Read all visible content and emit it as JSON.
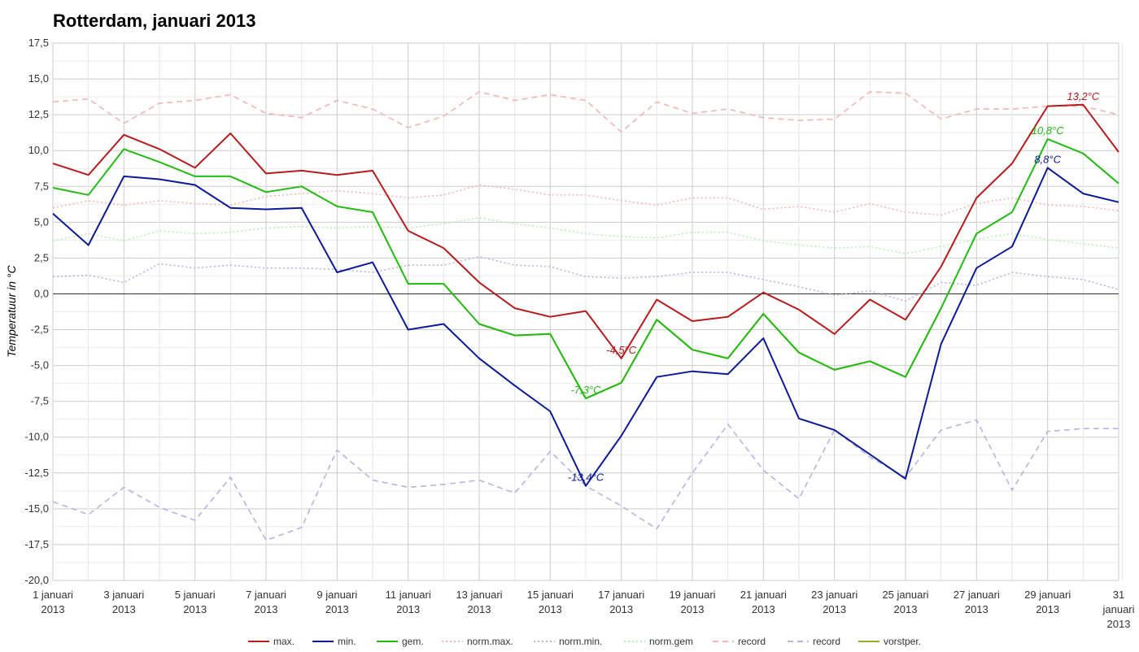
{
  "chart_data": {
    "type": "line",
    "title": "Rotterdam, januari 2013",
    "ylabel": "Temperatuur in °C",
    "ylim": [
      -20,
      17.5
    ],
    "ytick_step": 2.5,
    "ytick_labels": [
      "17,5",
      "15,0",
      "12,5",
      "10,0",
      "7,5",
      "5,0",
      "2,5",
      "0,0",
      "-2,5",
      "-5,0",
      "-7,5",
      "-10,0",
      "-12,5",
      "-15,0",
      "-17,5",
      "-20,0"
    ],
    "x": [
      1,
      2,
      3,
      4,
      5,
      6,
      7,
      8,
      9,
      10,
      11,
      12,
      13,
      14,
      15,
      16,
      17,
      18,
      19,
      20,
      21,
      22,
      23,
      24,
      25,
      26,
      27,
      28,
      29,
      30,
      31
    ],
    "xlim": [
      1,
      31
    ],
    "xtick_labels": [
      {
        "day": 1,
        "line1": "1 januari",
        "line2": "2013"
      },
      {
        "day": 3,
        "line1": "3 januari",
        "line2": "2013"
      },
      {
        "day": 5,
        "line1": "5 januari",
        "line2": "2013"
      },
      {
        "day": 7,
        "line1": "7 januari",
        "line2": "2013"
      },
      {
        "day": 9,
        "line1": "9 januari",
        "line2": "2013"
      },
      {
        "day": 11,
        "line1": "11 januari",
        "line2": "2013"
      },
      {
        "day": 13,
        "line1": "13 januari",
        "line2": "2013"
      },
      {
        "day": 15,
        "line1": "15 januari",
        "line2": "2013"
      },
      {
        "day": 17,
        "line1": "17 januari",
        "line2": "2013"
      },
      {
        "day": 19,
        "line1": "19 januari",
        "line2": "2013"
      },
      {
        "day": 21,
        "line1": "21 januari",
        "line2": "2013"
      },
      {
        "day": 23,
        "line1": "23 januari",
        "line2": "2013"
      },
      {
        "day": 25,
        "line1": "25 januari",
        "line2": "2013"
      },
      {
        "day": 27,
        "line1": "27 januari",
        "line2": "2013"
      },
      {
        "day": 29,
        "line1": "29 januari",
        "line2": "2013"
      },
      {
        "day": 31,
        "line1": "31",
        "line2": "januari",
        "line3": "2013"
      }
    ],
    "grid": true,
    "legend_position": "bottom",
    "series": [
      {
        "name": "norm.max.",
        "color": "#f4b4b4",
        "style": "dotted",
        "values": [
          6.0,
          6.5,
          6.2,
          6.5,
          6.3,
          6.2,
          6.8,
          7.0,
          7.2,
          7.0,
          6.7,
          6.9,
          7.6,
          7.3,
          6.9,
          6.9,
          6.5,
          6.2,
          6.7,
          6.7,
          5.9,
          6.1,
          5.7,
          6.3,
          5.7,
          5.5,
          6.3,
          6.7,
          6.2,
          6.1,
          5.8
        ]
      },
      {
        "name": "norm.min.",
        "color": "#b4b4e6",
        "style": "dotted",
        "values": [
          1.2,
          1.3,
          0.8,
          2.1,
          1.8,
          2.0,
          1.8,
          1.8,
          1.7,
          1.5,
          2.0,
          2.0,
          2.6,
          2.0,
          1.9,
          1.2,
          1.1,
          1.2,
          1.5,
          1.5,
          1.0,
          0.5,
          -0.1,
          0.2,
          -0.5,
          0.8,
          0.6,
          1.5,
          1.2,
          1.0,
          0.3
        ]
      },
      {
        "name": "norm.gem",
        "color": "#b4f0b4",
        "style": "dotted",
        "values": [
          3.7,
          4.2,
          3.7,
          4.4,
          4.2,
          4.3,
          4.6,
          4.7,
          4.6,
          4.7,
          4.6,
          4.9,
          5.3,
          4.9,
          4.6,
          4.2,
          4.0,
          3.9,
          4.3,
          4.3,
          3.7,
          3.4,
          3.2,
          3.3,
          2.8,
          3.3,
          3.8,
          4.2,
          3.8,
          3.5,
          3.2
        ]
      },
      {
        "name": "record",
        "color": "#f4b4b4",
        "style": "dashed",
        "values": [
          13.4,
          13.6,
          11.9,
          13.3,
          13.5,
          13.9,
          12.6,
          12.3,
          13.5,
          12.9,
          11.6,
          12.4,
          14.1,
          13.5,
          13.9,
          13.5,
          11.3,
          13.4,
          12.6,
          12.9,
          12.3,
          12.1,
          12.2,
          14.1,
          14.0,
          12.2,
          12.9,
          12.9,
          13.1,
          13.1,
          12.5
        ]
      },
      {
        "name": "record",
        "color": "#b4b4e6",
        "style": "dashed",
        "values": [
          -14.5,
          -15.4,
          -13.5,
          -14.9,
          -15.8,
          -12.8,
          -17.2,
          -16.3,
          -10.9,
          -13.0,
          -13.5,
          -13.3,
          -13.0,
          -13.9,
          -11.0,
          -13.4,
          -14.8,
          -16.4,
          -12.5,
          -9.1,
          -12.3,
          -14.3,
          -9.5,
          -11.4,
          -12.8,
          -9.5,
          -8.8,
          -13.7,
          -9.6,
          -9.4,
          -9.4
        ]
      },
      {
        "name": "vorstper.",
        "color": "#9aaa22",
        "style": "solid",
        "values": [
          null,
          null,
          null,
          null,
          null,
          null,
          null,
          null,
          null,
          null,
          null,
          null,
          -2.1,
          -2.9,
          -2.8,
          -7.3,
          -6.2,
          -1.8,
          -3.9,
          -4.5,
          -1.4,
          -4.1,
          -5.3,
          -4.7,
          -5.8,
          -1.0,
          null,
          null,
          null,
          null,
          null
        ]
      },
      {
        "name": "min.",
        "color": "#0b1a99",
        "style": "solid",
        "values": [
          5.6,
          3.4,
          8.2,
          8.0,
          7.6,
          6.0,
          5.9,
          6.0,
          1.5,
          2.2,
          -2.5,
          -2.1,
          -4.5,
          -6.4,
          -8.2,
          -13.4,
          -9.9,
          -5.8,
          -5.4,
          -5.6,
          -3.1,
          -8.7,
          -9.5,
          -11.2,
          -12.9,
          -3.5,
          1.8,
          3.3,
          8.8,
          7.0,
          6.4
        ]
      },
      {
        "name": "gem.",
        "color": "#22bb11",
        "style": "solid",
        "values": [
          7.4,
          6.9,
          10.1,
          9.2,
          8.2,
          8.2,
          7.1,
          7.5,
          6.1,
          5.7,
          0.7,
          0.7,
          -2.1,
          -2.9,
          -2.8,
          -7.3,
          -6.2,
          -1.8,
          -3.9,
          -4.5,
          -1.4,
          -4.1,
          -5.3,
          -4.7,
          -5.8,
          -1.0,
          4.2,
          5.7,
          10.8,
          9.8,
          7.7
        ]
      },
      {
        "name": "max.",
        "color": "#b81b1b",
        "style": "solid",
        "values": [
          9.1,
          8.3,
          11.1,
          10.1,
          8.8,
          11.2,
          8.4,
          8.6,
          8.3,
          8.6,
          4.4,
          3.2,
          0.8,
          -1.0,
          -1.6,
          -1.2,
          -4.5,
          -0.4,
          -1.9,
          -1.6,
          0.1,
          -1.1,
          -2.8,
          -0.4,
          -1.8,
          1.9,
          6.7,
          9.1,
          13.1,
          13.2,
          9.9
        ]
      }
    ],
    "annotations": [
      {
        "text": "13,2°C",
        "day": 30,
        "value": 13.2,
        "color": "#b81b1b"
      },
      {
        "text": "10,8°C",
        "day": 29,
        "value": 10.8,
        "color": "#22bb11"
      },
      {
        "text": "8,8°C",
        "day": 29,
        "value": 8.8,
        "color": "#0b1a99"
      },
      {
        "text": "-4,5°C",
        "day": 17,
        "value": -4.5,
        "color": "#b81b1b"
      },
      {
        "text": "-7,3°C",
        "day": 16,
        "value": -7.3,
        "color": "#22bb11"
      },
      {
        "text": "-13,4°C",
        "day": 16,
        "value": -13.4,
        "color": "#0b1a99"
      }
    ],
    "legend": [
      {
        "label": "max.",
        "color": "#b81b1b",
        "style": "solid"
      },
      {
        "label": "min.",
        "color": "#0b1a99",
        "style": "solid"
      },
      {
        "label": "gem.",
        "color": "#22bb11",
        "style": "solid"
      },
      {
        "label": "norm.max.",
        "color": "#f4b4b4",
        "style": "dotted"
      },
      {
        "label": "norm.min.",
        "color": "#b4b4e6",
        "style": "dotted"
      },
      {
        "label": "norm.gem",
        "color": "#b4f0b4",
        "style": "dotted"
      },
      {
        "label": "record",
        "color": "#f4b4b4",
        "style": "dashed"
      },
      {
        "label": "record",
        "color": "#b4b4e6",
        "style": "dashed"
      },
      {
        "label": "vorstper.",
        "color": "#9aaa22",
        "style": "solid"
      }
    ]
  }
}
